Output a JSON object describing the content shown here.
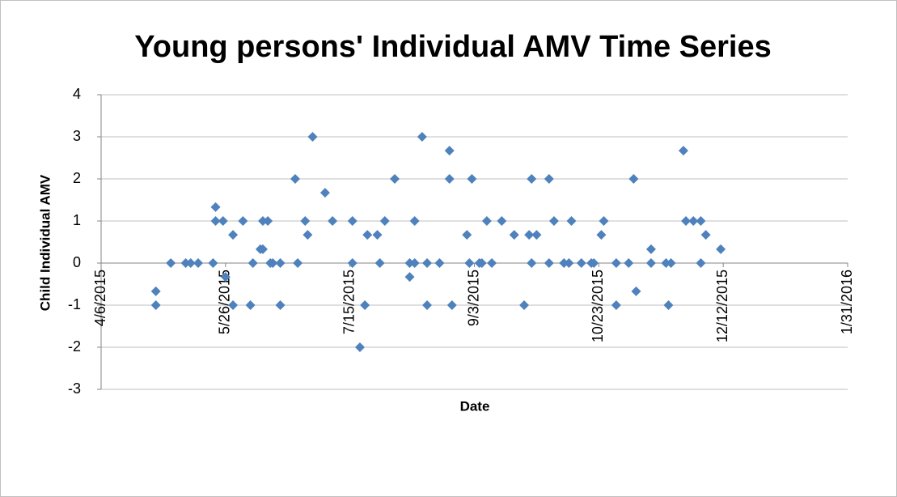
{
  "chart_data": {
    "type": "scatter",
    "title": "Young persons' Individual AMV Time Series",
    "x_label": "Date",
    "y_label": "Child Individual AMV",
    "xlim": [
      "2015-04-06",
      "2016-01-31"
    ],
    "xticks": [
      {
        "value": "2015-04-06",
        "label": "4/6/2015"
      },
      {
        "value": "2015-05-26",
        "label": "5/26/2015"
      },
      {
        "value": "2015-07-15",
        "label": "7/15/2015"
      },
      {
        "value": "2015-09-03",
        "label": "9/3/2015"
      },
      {
        "value": "2015-10-23",
        "label": "10/23/2015"
      },
      {
        "value": "2015-12-12",
        "label": "12/12/2015"
      },
      {
        "value": "2016-01-31",
        "label": "1/31/2016"
      }
    ],
    "ylim": [
      -3,
      4
    ],
    "yticks": [
      -3,
      -2,
      -1,
      0,
      1,
      2,
      3,
      4
    ],
    "grid": true,
    "series": [
      {
        "color": "#4f81bd",
        "x": [
          "2015-04-28",
          "2015-04-28",
          "2015-05-04",
          "2015-05-10",
          "2015-05-12",
          "2015-05-15",
          "2015-05-21",
          "2015-05-22",
          "2015-05-22",
          "2015-05-25",
          "2015-05-26",
          "2015-05-29",
          "2015-05-29",
          "2015-06-02",
          "2015-06-05",
          "2015-06-06",
          "2015-06-09",
          "2015-06-10",
          "2015-06-10",
          "2015-06-12",
          "2015-06-13",
          "2015-06-14",
          "2015-06-17",
          "2015-06-17",
          "2015-06-23",
          "2015-06-24",
          "2015-06-27",
          "2015-06-28",
          "2015-06-30",
          "2015-07-05",
          "2015-07-08",
          "2015-07-16",
          "2015-07-16",
          "2015-07-19",
          "2015-07-21",
          "2015-07-22",
          "2015-07-26",
          "2015-07-27",
          "2015-07-29",
          "2015-08-02",
          "2015-08-08",
          "2015-08-08",
          "2015-08-10",
          "2015-08-10",
          "2015-08-13",
          "2015-08-15",
          "2015-08-15",
          "2015-08-20",
          "2015-08-24",
          "2015-08-24",
          "2015-08-25",
          "2015-08-31",
          "2015-09-01",
          "2015-09-02",
          "2015-09-05",
          "2015-09-06",
          "2015-09-08",
          "2015-09-10",
          "2015-09-14",
          "2015-09-19",
          "2015-09-23",
          "2015-09-25",
          "2015-09-26",
          "2015-09-26",
          "2015-09-28",
          "2015-10-03",
          "2015-10-03",
          "2015-10-05",
          "2015-10-09",
          "2015-10-11",
          "2015-10-12",
          "2015-10-16",
          "2015-10-20",
          "2015-10-21",
          "2015-10-24",
          "2015-10-25",
          "2015-10-30",
          "2015-10-30",
          "2015-11-04",
          "2015-11-06",
          "2015-11-07",
          "2015-11-13",
          "2015-11-13",
          "2015-11-19",
          "2015-11-20",
          "2015-11-21",
          "2015-11-26",
          "2015-11-27",
          "2015-11-30",
          "2015-12-03",
          "2015-12-03",
          "2015-12-05",
          "2015-12-11"
        ],
        "values": [
          -0.67,
          -1,
          0,
          0,
          0,
          0,
          0,
          1.33,
          1,
          1,
          -0.33,
          0.67,
          -1,
          1,
          -1,
          0,
          0.33,
          0.33,
          1,
          1,
          0,
          0,
          -1,
          0,
          2,
          0,
          1,
          0.67,
          3,
          1.67,
          1,
          1,
          0,
          -2,
          -1,
          0.67,
          0.67,
          0,
          1,
          2,
          -0.33,
          0,
          1,
          0,
          3,
          -1,
          0,
          0,
          2.67,
          2,
          -1,
          0.67,
          0,
          2,
          0,
          0,
          1,
          0,
          1,
          0.67,
          -1,
          0.67,
          2,
          0,
          0.67,
          2,
          0,
          1,
          0,
          0,
          1,
          0,
          0,
          0,
          0.67,
          1,
          -1,
          0,
          0,
          2,
          -0.67,
          0,
          0.33,
          0,
          -1,
          0,
          2.67,
          1,
          1,
          1,
          0,
          0.67,
          0.33
        ]
      }
    ]
  }
}
